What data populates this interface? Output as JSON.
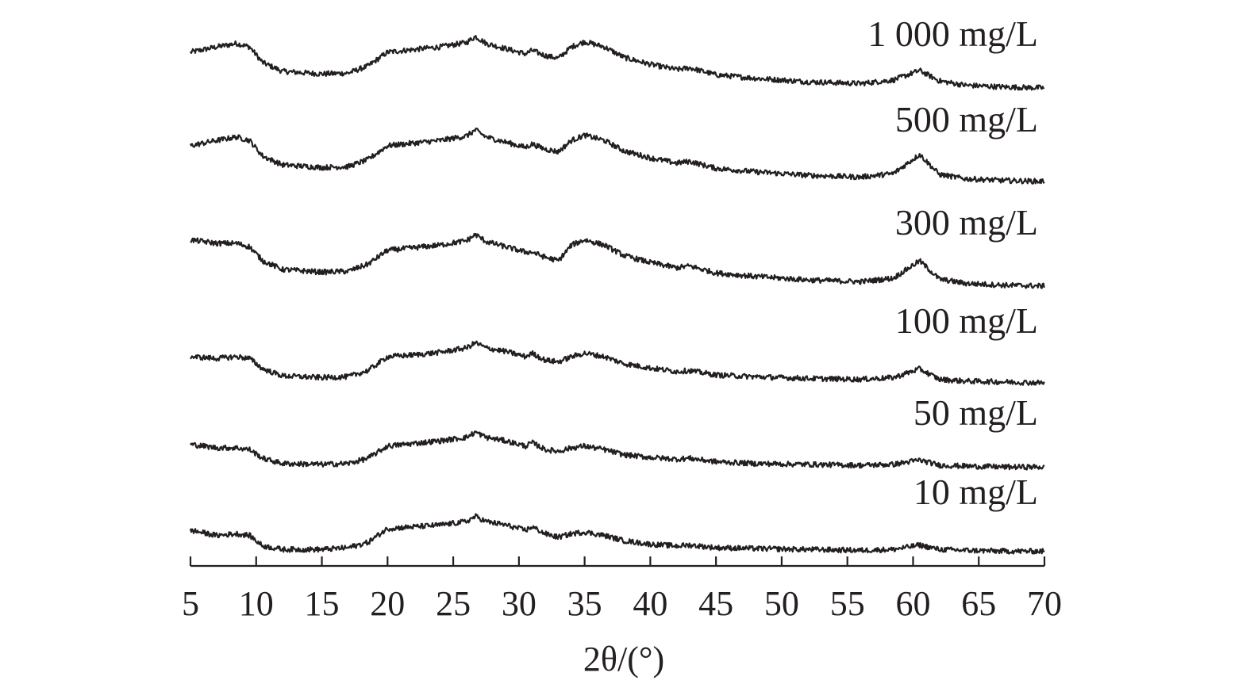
{
  "chart_data": {
    "type": "line",
    "title": "",
    "xlabel": "2θ/(°)",
    "ylabel": "",
    "xlim": [
      5,
      70
    ],
    "xticks": [
      5,
      10,
      15,
      20,
      25,
      30,
      35,
      40,
      45,
      50,
      55,
      60,
      65,
      70
    ],
    "grid": false,
    "legend": "series names printed at right end of each trace",
    "y_scale": "arbitrary intensity, traces vertically offset",
    "series": [
      {
        "name": "1 000 mg/L",
        "x": [
          5,
          7,
          8.5,
          9.5,
          10.5,
          12,
          15,
          17,
          18.5,
          20,
          22,
          24,
          26,
          26.7,
          27.5,
          29,
          30.5,
          31,
          32,
          33,
          34,
          35,
          36.5,
          38,
          40,
          42,
          43,
          45,
          48,
          52,
          56,
          58.5,
          60.5,
          62,
          64,
          67,
          70
        ],
        "y": [
          0.82,
          0.88,
          0.92,
          0.88,
          0.7,
          0.6,
          0.57,
          0.58,
          0.66,
          0.82,
          0.85,
          0.88,
          0.93,
          1.0,
          0.92,
          0.86,
          0.8,
          0.84,
          0.78,
          0.75,
          0.88,
          0.94,
          0.88,
          0.76,
          0.68,
          0.62,
          0.64,
          0.56,
          0.52,
          0.48,
          0.46,
          0.5,
          0.61,
          0.49,
          0.44,
          0.42,
          0.41
        ]
      },
      {
        "name": "500 mg/L",
        "x": [
          5,
          7,
          8.5,
          9.5,
          10.5,
          12,
          15,
          17,
          18.5,
          20,
          22,
          24,
          26,
          26.7,
          27.5,
          29,
          30.5,
          31,
          32,
          33,
          34,
          35,
          36.5,
          38,
          40,
          42,
          43,
          45,
          48,
          52,
          56,
          58.5,
          60.5,
          62,
          64,
          67,
          70
        ],
        "y": [
          0.82,
          0.88,
          0.92,
          0.88,
          0.7,
          0.6,
          0.57,
          0.58,
          0.66,
          0.82,
          0.85,
          0.88,
          0.93,
          1.0,
          0.92,
          0.86,
          0.8,
          0.84,
          0.78,
          0.75,
          0.88,
          0.94,
          0.88,
          0.76,
          0.68,
          0.62,
          0.64,
          0.56,
          0.52,
          0.48,
          0.46,
          0.5,
          0.72,
          0.49,
          0.44,
          0.42,
          0.41
        ]
      },
      {
        "name": "300 mg/L",
        "x": [
          5,
          7,
          8.5,
          9.5,
          10.5,
          12,
          15,
          17,
          18.5,
          20,
          22,
          24,
          26,
          26.7,
          27.5,
          29,
          30.5,
          31,
          32,
          33,
          34,
          35,
          36.5,
          38,
          40,
          42,
          43,
          45,
          48,
          52,
          56,
          58.5,
          60.5,
          62,
          64,
          67,
          70
        ],
        "y": [
          0.94,
          0.9,
          0.9,
          0.86,
          0.7,
          0.6,
          0.57,
          0.58,
          0.66,
          0.82,
          0.85,
          0.88,
          0.93,
          1.0,
          0.92,
          0.86,
          0.8,
          0.8,
          0.74,
          0.7,
          0.88,
          0.94,
          0.88,
          0.76,
          0.68,
          0.62,
          0.64,
          0.56,
          0.52,
          0.48,
          0.46,
          0.5,
          0.7,
          0.49,
          0.44,
          0.42,
          0.41
        ]
      },
      {
        "name": "100 mg/L",
        "x": [
          5,
          7,
          8.5,
          9.5,
          10.5,
          12,
          15,
          17,
          18.5,
          20,
          22,
          24,
          26,
          26.7,
          27.5,
          29,
          30.5,
          31,
          32,
          33,
          34,
          35,
          36.5,
          38,
          40,
          42,
          43,
          45,
          48,
          52,
          56,
          58.5,
          60.5,
          62,
          64,
          67,
          70
        ],
        "y": [
          0.6,
          0.58,
          0.6,
          0.58,
          0.46,
          0.38,
          0.36,
          0.37,
          0.44,
          0.6,
          0.62,
          0.65,
          0.7,
          0.76,
          0.7,
          0.66,
          0.6,
          0.64,
          0.56,
          0.54,
          0.6,
          0.64,
          0.6,
          0.52,
          0.47,
          0.43,
          0.44,
          0.39,
          0.37,
          0.35,
          0.34,
          0.36,
          0.46,
          0.34,
          0.32,
          0.31,
          0.3
        ]
      },
      {
        "name": "50 mg/L",
        "x": [
          5,
          7,
          8.5,
          9.5,
          10.5,
          12,
          15,
          17,
          18.5,
          20,
          22,
          24,
          26,
          26.7,
          27.5,
          29,
          30.5,
          31,
          32,
          33,
          34,
          35,
          36.5,
          38,
          40,
          42,
          43,
          45,
          48,
          52,
          56,
          58.5,
          60.5,
          62,
          64,
          67,
          70
        ],
        "y": [
          0.54,
          0.5,
          0.5,
          0.48,
          0.38,
          0.32,
          0.31,
          0.32,
          0.38,
          0.52,
          0.55,
          0.58,
          0.62,
          0.68,
          0.62,
          0.58,
          0.52,
          0.56,
          0.48,
          0.46,
          0.5,
          0.52,
          0.48,
          0.42,
          0.39,
          0.37,
          0.38,
          0.34,
          0.32,
          0.31,
          0.3,
          0.31,
          0.36,
          0.3,
          0.29,
          0.28,
          0.28
        ]
      },
      {
        "name": "10 mg/L",
        "x": [
          5,
          7,
          8.5,
          9.5,
          10.5,
          12,
          15,
          17,
          18.5,
          20,
          22,
          24,
          26,
          26.7,
          27.5,
          29,
          30.5,
          31,
          32,
          33,
          34,
          35,
          36.5,
          38,
          40,
          42,
          43,
          45,
          48,
          52,
          56,
          58.5,
          60.5,
          62,
          64,
          67,
          70
        ],
        "y": [
          0.5,
          0.44,
          0.46,
          0.44,
          0.32,
          0.28,
          0.28,
          0.3,
          0.36,
          0.52,
          0.54,
          0.56,
          0.6,
          0.66,
          0.6,
          0.56,
          0.5,
          0.54,
          0.46,
          0.42,
          0.46,
          0.48,
          0.44,
          0.38,
          0.34,
          0.32,
          0.33,
          0.3,
          0.29,
          0.28,
          0.27,
          0.28,
          0.33,
          0.28,
          0.27,
          0.26,
          0.26
        ]
      }
    ]
  },
  "style": {
    "line_color": "#231f20",
    "background": "#ffffff"
  }
}
